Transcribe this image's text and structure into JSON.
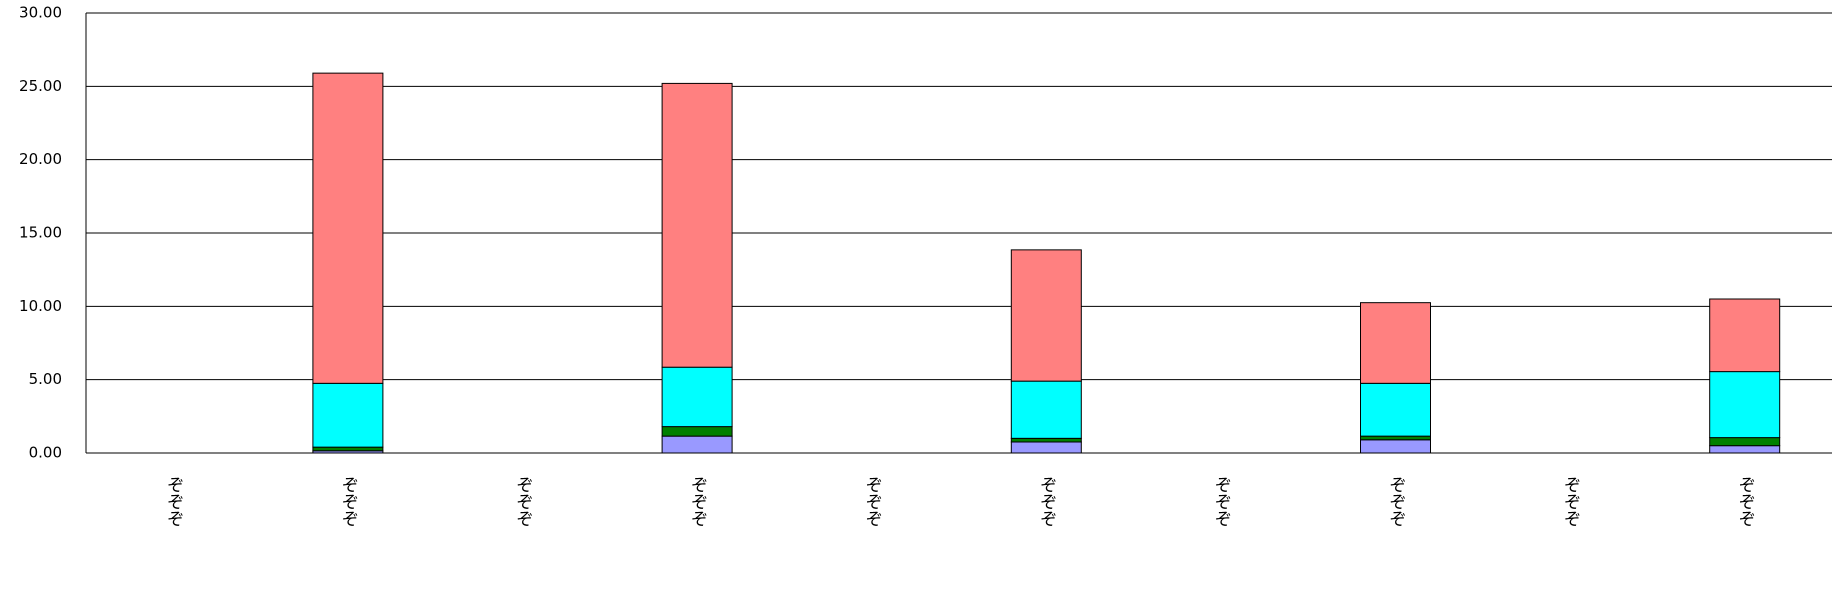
{
  "chart_data": {
    "type": "bar",
    "stacked": true,
    "categories": [
      "ぞぞぞ",
      "ぞぞぞ",
      "ぞぞぞ",
      "ぞぞぞ",
      "ぞぞぞ",
      "ぞぞぞ",
      "ぞぞぞ",
      "ぞぞぞ",
      "ぞぞぞ",
      "ぞぞぞ"
    ],
    "series": [
      {
        "color": "#9999ff",
        "values": [
          0,
          0.15,
          0,
          1.15,
          0,
          0.75,
          0,
          0.9,
          0,
          0.5
        ]
      },
      {
        "color": "#008000",
        "values": [
          0,
          0.25,
          0,
          0.65,
          0,
          0.25,
          0,
          0.25,
          0,
          0.55
        ]
      },
      {
        "color": "#00ffff",
        "values": [
          0,
          4.35,
          0,
          4.05,
          0,
          3.9,
          0,
          3.6,
          0,
          4.5
        ]
      },
      {
        "color": "#ff8080",
        "values": [
          0,
          21.15,
          0,
          19.35,
          0,
          8.95,
          0,
          5.5,
          0,
          4.95
        ]
      }
    ],
    "ylim": [
      0,
      30
    ],
    "yticks": [
      {
        "value": 0,
        "label": "0.00"
      },
      {
        "value": 5,
        "label": "5.00"
      },
      {
        "value": 10,
        "label": "10.00"
      },
      {
        "value": 15,
        "label": "15.00"
      },
      {
        "value": 20,
        "label": "20.00"
      },
      {
        "value": 25,
        "label": "25.00"
      },
      {
        "value": 30,
        "label": "30.00"
      }
    ],
    "grid": true
  }
}
